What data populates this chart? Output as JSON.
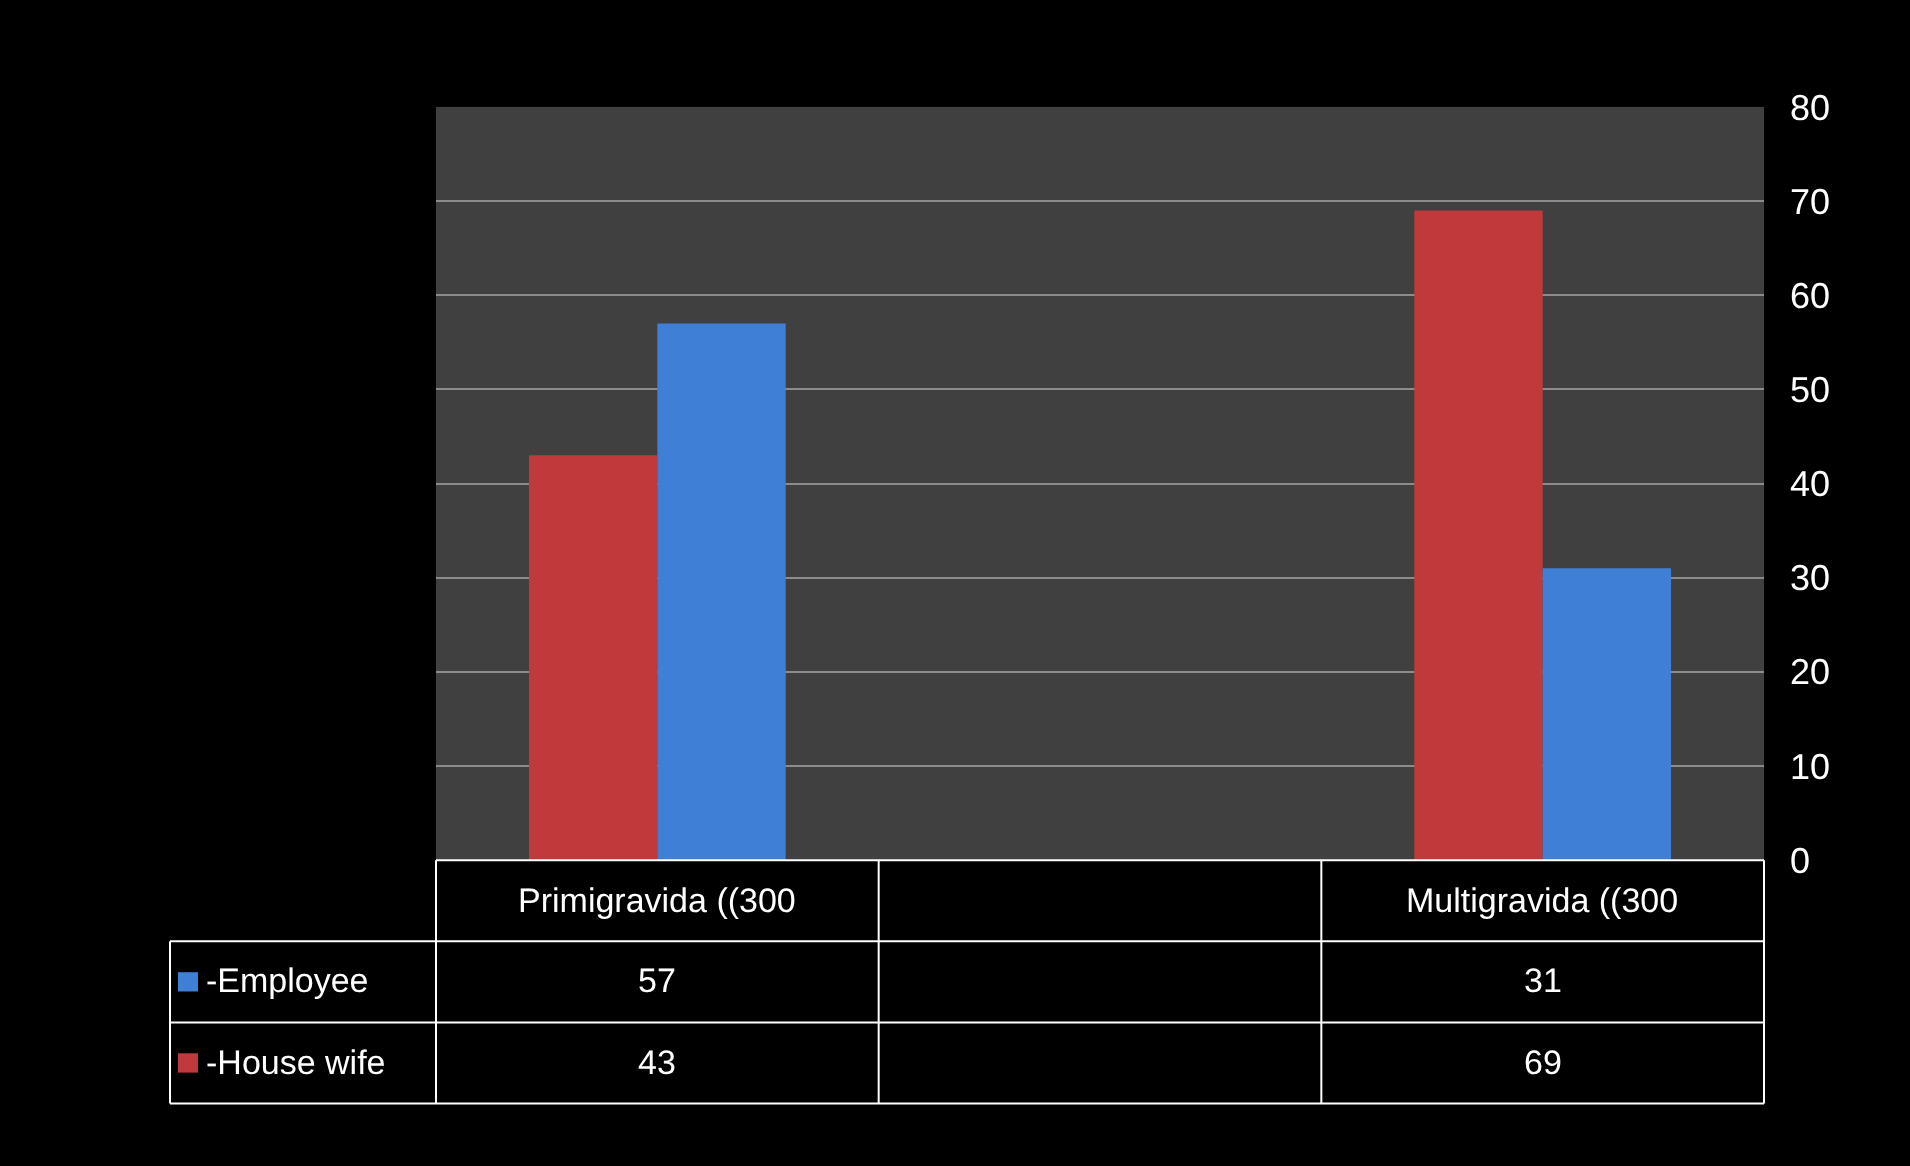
{
  "chart_data": {
    "type": "bar",
    "categories": [
      "Primigravida ((300",
      null,
      "Multigravida ((300"
    ],
    "series": [
      {
        "name": "-House wife",
        "color": "#c0393b",
        "values": [
          43,
          null,
          69
        ]
      },
      {
        "name": "-Employee",
        "color": "#3f7fd6",
        "values": [
          57,
          null,
          31
        ]
      }
    ],
    "legend": "bottom left",
    "ylim": [
      0,
      80
    ],
    "yticks": [
      0,
      10,
      20,
      30,
      40,
      50,
      60,
      70,
      80
    ],
    "grid": "y",
    "data_labels": true
  }
}
